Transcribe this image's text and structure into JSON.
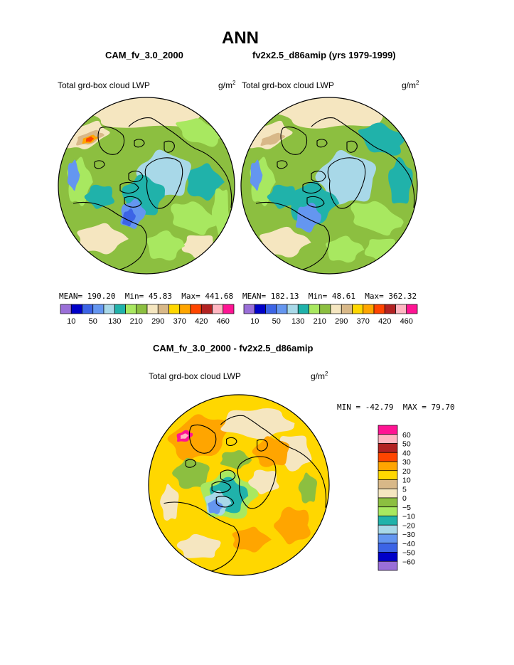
{
  "header": {
    "title": "ANN",
    "case1": "CAM_fv_3.0_2000",
    "case2": "fv2x2.5_d86amip (yrs 1979-1999)",
    "diff_title": "CAM_fv_3.0_2000 - fv2x2.5_d86amip"
  },
  "chart_data": [
    {
      "type": "heatmap",
      "subtype": "polar-stereographic-contour-map",
      "title": "CAM_fv_3.0_2000",
      "field_label": "Total grd-box cloud LWP",
      "units": "g/m",
      "units_sup": "2",
      "stats": {
        "mean_label": "MEAN=",
        "mean": "190.20",
        "min_label": "Min=",
        "min": "45.83",
        "max_label": "Max=",
        "max": "441.68"
      },
      "contour_levels": [
        10,
        30,
        50,
        90,
        130,
        170,
        210,
        250,
        290,
        330,
        370,
        400,
        420,
        440,
        460
      ],
      "colorbar_labels": [
        "10",
        "50",
        "130",
        "210",
        "290",
        "370",
        "420",
        "460"
      ],
      "colorbar_colors": [
        "#9a6fd8",
        "#0000c8",
        "#3c64e6",
        "#6496f0",
        "#a8d8e8",
        "#20b2aa",
        "#a8e860",
        "#8cbf40",
        "#f5e6c0",
        "#d8b888",
        "#ffd700",
        "#ffa500",
        "#ff4500",
        "#b22222",
        "#ffb6c1",
        "#ff1493"
      ]
    },
    {
      "type": "heatmap",
      "subtype": "polar-stereographic-contour-map",
      "title": "fv2x2.5_d86amip (yrs 1979-1999)",
      "field_label": "Total grd-box cloud LWP",
      "units": "g/m",
      "units_sup": "2",
      "stats": {
        "mean_label": "MEAN=",
        "mean": "182.13",
        "min_label": "Min=",
        "min": "48.61",
        "max_label": "Max=",
        "max": "362.32"
      },
      "contour_levels": [
        10,
        30,
        50,
        90,
        130,
        170,
        210,
        250,
        290,
        330,
        370,
        400,
        420,
        440,
        460
      ],
      "colorbar_labels": [
        "10",
        "50",
        "130",
        "210",
        "290",
        "370",
        "420",
        "460"
      ],
      "colorbar_colors": [
        "#9a6fd8",
        "#0000c8",
        "#3c64e6",
        "#6496f0",
        "#a8d8e8",
        "#20b2aa",
        "#a8e860",
        "#8cbf40",
        "#f5e6c0",
        "#d8b888",
        "#ffd700",
        "#ffa500",
        "#ff4500",
        "#b22222",
        "#ffb6c1",
        "#ff1493"
      ]
    },
    {
      "type": "heatmap",
      "subtype": "polar-stereographic-difference-map",
      "title": "CAM_fv_3.0_2000 - fv2x2.5_d86amip",
      "field_label": "Total grd-box cloud LWP",
      "units": "g/m",
      "units_sup": "2",
      "stats": {
        "min_label": "MIN =",
        "min": "-42.79",
        "max_label": "MAX =",
        "max": "79.70"
      },
      "contour_levels": [
        60,
        50,
        40,
        30,
        20,
        10,
        5,
        0,
        -5,
        -10,
        -20,
        -30,
        -40,
        -50,
        -60
      ],
      "colorbar_labels": [
        "60",
        "50",
        "40",
        "30",
        "20",
        "10",
        "5",
        "0",
        "−5",
        "−10",
        "−20",
        "−30",
        "−40",
        "−50",
        "−60"
      ],
      "colorbar_colors": [
        "#ff1493",
        "#ffb6c1",
        "#b22222",
        "#ff4500",
        "#ffa500",
        "#ffd700",
        "#d8b888",
        "#f5e6c0",
        "#8cbf40",
        "#a8e860",
        "#20b2aa",
        "#a8d8e8",
        "#6496f0",
        "#3c64e6",
        "#0000c8",
        "#9a6fd8"
      ]
    }
  ]
}
